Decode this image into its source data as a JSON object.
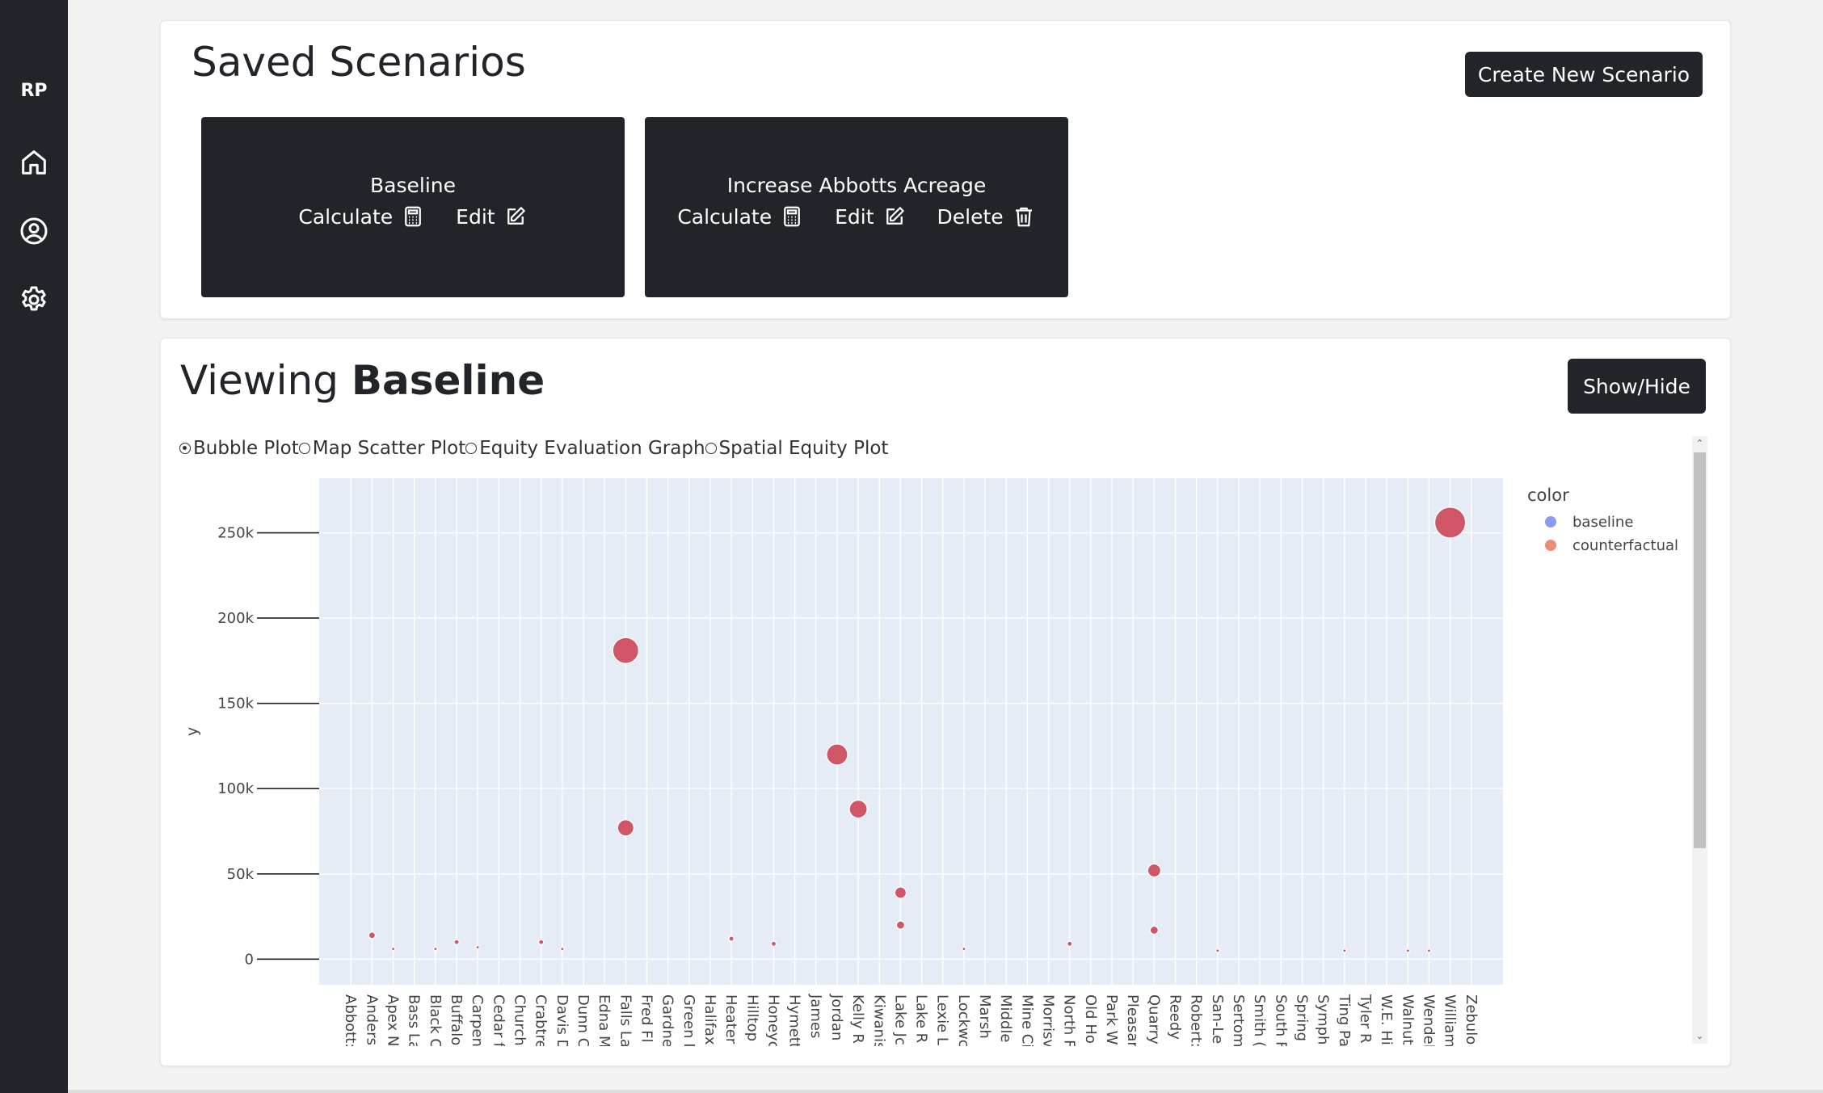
{
  "sidebar": {
    "brand": "RP",
    "icons": [
      "home-icon",
      "user-circle-icon",
      "gear-icon"
    ]
  },
  "saved": {
    "title": "Saved Scenarios",
    "create_button": "Create New Scenario",
    "scenarios": [
      {
        "name": "Baseline",
        "calculate": "Calculate",
        "edit": "Edit"
      },
      {
        "name": "Increase Abbotts Acreage",
        "calculate": "Calculate",
        "edit": "Edit",
        "delete": "Delete"
      }
    ]
  },
  "viewing": {
    "prefix": "Viewing ",
    "name": "Baseline",
    "toggle_button": "Show/Hide",
    "plot_options": [
      "Bubble Plot",
      "Map Scatter Plot",
      "Equity Evaluation Graph",
      "Spatial Equity Plot"
    ],
    "selected_option": "Bubble Plot"
  },
  "colors": {
    "baseline": "#8c9af0",
    "counterfactual": "#ef8c76",
    "bubble": "#cf5567",
    "plot_bg": "#e5ecf6"
  },
  "chart_data": {
    "type": "scatter",
    "ylabel": "y",
    "xlabel": "",
    "ylim": [
      -15000,
      282000
    ],
    "yticks": [
      0,
      50000,
      100000,
      150000,
      200000,
      250000
    ],
    "ytick_labels": [
      "0",
      "50k",
      "100k",
      "150k",
      "200k",
      "250k"
    ],
    "legend_title": "color",
    "legend_position": "right",
    "legend": [
      {
        "label": "baseline",
        "color": "#8c9af0"
      },
      {
        "label": "counterfactual",
        "color": "#ef8c76"
      }
    ],
    "categories": [
      "Abbott:",
      "Anders",
      "Apex N",
      "Bass La",
      "Black C",
      "Buffalo",
      "Carpen",
      "Cedar f",
      "Church",
      "Crabtre",
      "Davis D",
      "Dunn C",
      "Edna M",
      "Falls La",
      "Fred Fl",
      "Gardne",
      "Green I",
      "Halifax",
      "Heater",
      "Hilltop",
      "Honeyc",
      "Hymett",
      "James",
      "Jordan",
      "Kelly R",
      "Kiwanis",
      "Lake Jc",
      "Lake R",
      "Lexie L",
      "Lockwc",
      "Marsh",
      "Middle",
      "Mine Ci",
      "Morrisv",
      "North F",
      "Old Ho",
      "Park W",
      "Pleasar",
      "Quarry",
      "Reedy",
      "Robert:",
      "San-Le",
      "Sertom",
      "Smith (",
      "South F",
      "Spring",
      "Symph",
      "Ting Pa",
      "Tyler R",
      "W.E. Hi",
      "Walnut",
      "Wendel",
      "William",
      "Zebulo"
    ],
    "points": [
      {
        "x": "Anders",
        "y": 14000,
        "size": 4
      },
      {
        "x": "Apex N",
        "y": 6000,
        "size": 2
      },
      {
        "x": "Black C",
        "y": 6000,
        "size": 2
      },
      {
        "x": "Buffalo",
        "y": 10000,
        "size": 3
      },
      {
        "x": "Carpen",
        "y": 7000,
        "size": 2
      },
      {
        "x": "Crabtre",
        "y": 10000,
        "size": 3
      },
      {
        "x": "Davis D",
        "y": 6000,
        "size": 2
      },
      {
        "x": "Falls La",
        "y": 77000,
        "size": 10
      },
      {
        "x": "Falls La",
        "y": 181000,
        "size": 16
      },
      {
        "x": "Heater",
        "y": 12000,
        "size": 3
      },
      {
        "x": "Honeyc",
        "y": 9000,
        "size": 3
      },
      {
        "x": "Jordan",
        "y": 120000,
        "size": 13
      },
      {
        "x": "Kelly R",
        "y": 88000,
        "size": 11
      },
      {
        "x": "Lake Jc",
        "y": 39000,
        "size": 7
      },
      {
        "x": "Lake Jc",
        "y": 20000,
        "size": 5
      },
      {
        "x": "Lockwc",
        "y": 6000,
        "size": 2
      },
      {
        "x": "North F",
        "y": 9000,
        "size": 3
      },
      {
        "x": "Quarry",
        "y": 52000,
        "size": 8
      },
      {
        "x": "Quarry",
        "y": 17000,
        "size": 5
      },
      {
        "x": "San-Le",
        "y": 5000,
        "size": 2
      },
      {
        "x": "Ting Pa",
        "y": 5000,
        "size": 2
      },
      {
        "x": "Walnut",
        "y": 5000,
        "size": 2
      },
      {
        "x": "Wendel",
        "y": 5000,
        "size": 2
      },
      {
        "x": "William",
        "y": 256000,
        "size": 19
      }
    ]
  }
}
